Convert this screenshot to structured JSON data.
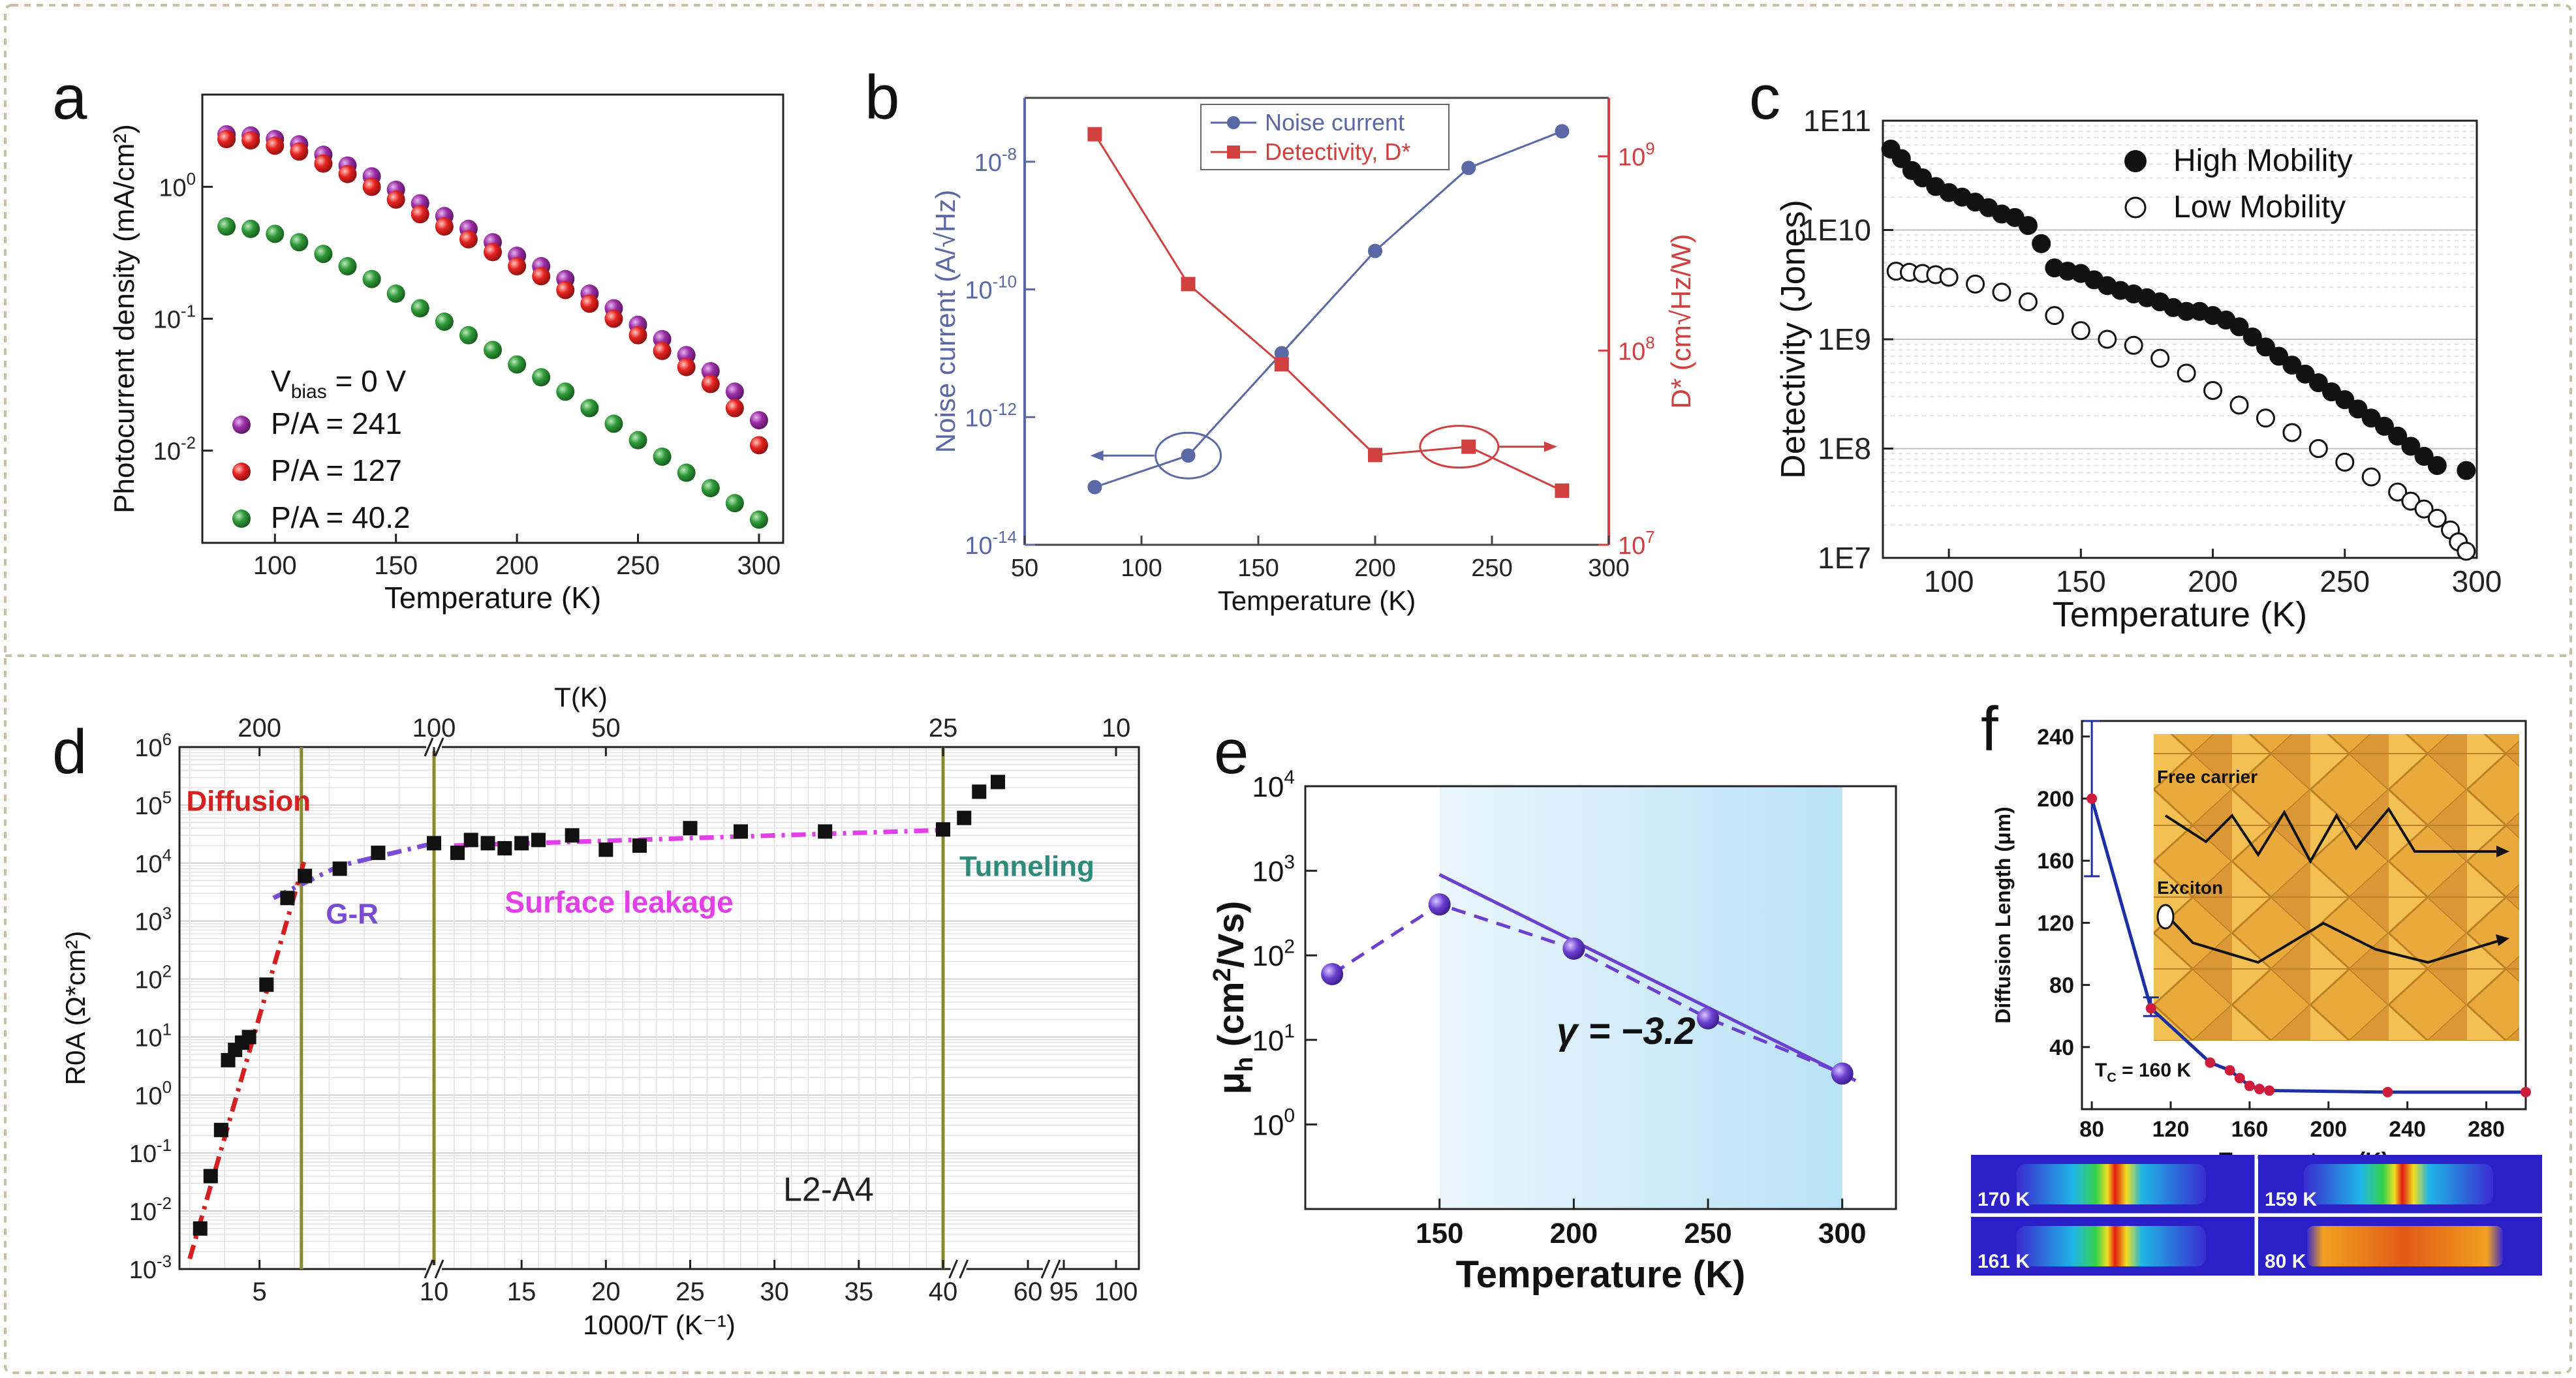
{
  "figure": {
    "panel_labels": [
      "a",
      "b",
      "c",
      "d",
      "e",
      "f"
    ],
    "frame_color": "#c8c0a4",
    "colors": {
      "purple": "#9b2fa6",
      "red": "#e52320",
      "green": "#2f9a39",
      "blue_axis": "#5a68a6",
      "red_axis": "#d0403f",
      "d_red": "#d42020",
      "d_violet": "#7a4cd6",
      "d_magenta": "#e040e6",
      "d_teal": "#2e8a7a",
      "e_violet": "#6b3fd0",
      "f_blue": "#1d2fa5",
      "f_red": "#d01c3c",
      "olive": "#8a8a2a"
    }
  },
  "chart_data": [
    {
      "id": "a",
      "type": "scatter",
      "yscale": "log",
      "xlabel": "Temperature (K)",
      "ylabel": "Photocurrent density (mA/cm²)",
      "xlim": [
        70,
        310
      ],
      "ylim": [
        0.002,
        5
      ],
      "xticks": [
        100,
        150,
        200,
        250,
        300
      ],
      "yticks": [
        {
          "v": 1,
          "base": "10",
          "exp": "0"
        },
        {
          "v": 0.1,
          "base": "10",
          "exp": "-1"
        },
        {
          "v": 0.01,
          "base": "10",
          "exp": "-2"
        }
      ],
      "annotation": {
        "main": "V",
        "sub": "bias",
        "rest": " = 0 V"
      },
      "series": [
        {
          "name": "P/A = 241",
          "color": "purple",
          "x": [
            80,
            90,
            100,
            110,
            120,
            130,
            140,
            150,
            160,
            170,
            180,
            190,
            200,
            210,
            220,
            230,
            240,
            250,
            260,
            270,
            280,
            290,
            300
          ],
          "y": [
            2.5,
            2.45,
            2.3,
            2.1,
            1.75,
            1.45,
            1.2,
            0.95,
            0.75,
            0.6,
            0.48,
            0.38,
            0.3,
            0.25,
            0.2,
            0.155,
            0.12,
            0.09,
            0.07,
            0.053,
            0.04,
            0.028,
            0.017
          ]
        },
        {
          "name": "P/A = 127",
          "color": "red",
          "x": [
            80,
            90,
            100,
            110,
            120,
            130,
            140,
            150,
            160,
            170,
            180,
            190,
            200,
            210,
            220,
            230,
            240,
            250,
            260,
            270,
            280,
            290,
            300
          ],
          "y": [
            2.3,
            2.25,
            2.05,
            1.85,
            1.5,
            1.25,
            1.0,
            0.8,
            0.62,
            0.5,
            0.4,
            0.32,
            0.25,
            0.21,
            0.165,
            0.13,
            0.1,
            0.075,
            0.057,
            0.043,
            0.032,
            0.021,
            0.011
          ]
        },
        {
          "name": "P/A = 40.2",
          "color": "green",
          "x": [
            80,
            90,
            100,
            110,
            120,
            130,
            140,
            150,
            160,
            170,
            180,
            190,
            200,
            210,
            220,
            230,
            240,
            250,
            260,
            270,
            280,
            290,
            300
          ],
          "y": [
            0.5,
            0.48,
            0.44,
            0.38,
            0.31,
            0.25,
            0.2,
            0.155,
            0.12,
            0.095,
            0.075,
            0.058,
            0.045,
            0.036,
            0.028,
            0.021,
            0.016,
            0.012,
            0.009,
            0.0068,
            0.0052,
            0.004,
            0.003
          ]
        }
      ]
    },
    {
      "id": "b",
      "type": "line",
      "yscale": "log",
      "xlabel": "Temperature (K)",
      "ylabel_left": "Noise current (A/√Hz)",
      "ylabel_right": "D* (cm√Hz/W)",
      "xlim": [
        50,
        300
      ],
      "xticks": [
        50,
        100,
        150,
        200,
        250,
        300
      ],
      "ylim_left": [
        1e-14,
        1e-07
      ],
      "yticks_left": [
        {
          "v": 1e-14,
          "base": "10",
          "exp": "-14"
        },
        {
          "v": 1e-12,
          "base": "10",
          "exp": "-12"
        },
        {
          "v": 1e-10,
          "base": "10",
          "exp": "-10"
        },
        {
          "v": 1e-08,
          "base": "10",
          "exp": "-8"
        }
      ],
      "ylim_right": [
        10000000.0,
        2000000000.0
      ],
      "yticks_right": [
        {
          "v": 10000000.0,
          "base": "10",
          "exp": "7"
        },
        {
          "v": 100000000.0,
          "base": "10",
          "exp": "8"
        },
        {
          "v": 1000000000.0,
          "base": "10",
          "exp": "9"
        }
      ],
      "series": [
        {
          "name": "Noise current",
          "axis": "left",
          "marker": "circle",
          "color": "blue_axis",
          "x": [
            80,
            120,
            160,
            200,
            240,
            280
          ],
          "y": [
            8e-14,
            2.5e-13,
            1e-11,
            4e-10,
            8e-09,
            3e-08
          ]
        },
        {
          "name": "Detectivity, D*",
          "axis": "right",
          "marker": "square",
          "color": "red_axis",
          "x": [
            80,
            120,
            160,
            200,
            240,
            280
          ],
          "y": [
            1300000000.0,
            220000000.0,
            85000000.0,
            29000000.0,
            32000000.0,
            19000000.0
          ]
        }
      ]
    },
    {
      "id": "c",
      "type": "scatter",
      "yscale": "log",
      "xlabel": "Temperature (K)",
      "ylabel": "Detectivity (Jones)",
      "xlim": [
        75,
        300
      ],
      "xticks": [
        100,
        150,
        200,
        250,
        300
      ],
      "ylim": [
        10000000.0,
        100000000000.0
      ],
      "yticks": [
        {
          "v": 100000000000.0,
          "label": "1E11"
        },
        {
          "v": 10000000000.0,
          "label": "1E10"
        },
        {
          "v": 1000000000.0,
          "label": "1E9"
        },
        {
          "v": 100000000.0,
          "label": "1E8"
        },
        {
          "v": 10000000.0,
          "label": "1E7"
        }
      ],
      "series": [
        {
          "name": "High Mobility",
          "fill": "filled",
          "x": [
            78,
            82,
            86,
            90,
            95,
            100,
            105,
            110,
            115,
            120,
            125,
            130,
            135,
            140,
            145,
            150,
            155,
            160,
            165,
            170,
            175,
            180,
            185,
            190,
            195,
            200,
            205,
            210,
            215,
            220,
            225,
            230,
            235,
            240,
            245,
            250,
            255,
            260,
            265,
            270,
            275,
            280,
            285,
            296
          ],
          "y": [
            55000000000.0,
            45000000000.0,
            35000000000.0,
            30000000000.0,
            25000000000.0,
            22000000000.0,
            20000000000.0,
            18000000000.0,
            16000000000.0,
            14000000000.0,
            13000000000.0,
            11000000000.0,
            7500000000.0,
            4500000000.0,
            4200000000.0,
            4000000000.0,
            3500000000.0,
            3100000000.0,
            2800000000.0,
            2600000000.0,
            2400000000.0,
            2200000000.0,
            1950000000.0,
            1800000000.0,
            1800000000.0,
            1650000000.0,
            1500000000.0,
            1300000000.0,
            1050000000.0,
            850000000.0,
            700000000.0,
            580000000.0,
            480000000.0,
            400000000.0,
            330000000.0,
            280000000.0,
            230000000.0,
            190000000.0,
            160000000.0,
            130000000.0,
            105000000.0,
            85000000.0,
            70000000.0,
            63000000.0
          ]
        },
        {
          "name": "Low Mobility",
          "fill": "open",
          "x": [
            80,
            85,
            90,
            95,
            100,
            110,
            120,
            130,
            140,
            150,
            160,
            170,
            180,
            190,
            200,
            210,
            220,
            230,
            240,
            250,
            260,
            270,
            275,
            280,
            285,
            290,
            293,
            296
          ],
          "y": [
            4200000000.0,
            4100000000.0,
            4000000000.0,
            3900000000.0,
            3700000000.0,
            3200000000.0,
            2700000000.0,
            2200000000.0,
            1650000000.0,
            1200000000.0,
            1000000000.0,
            880000000.0,
            670000000.0,
            490000000.0,
            340000000.0,
            250000000.0,
            190000000.0,
            140000000.0,
            100000000.0,
            75000000.0,
            55000000.0,
            40000000.0,
            33000000.0,
            28000000.0,
            23000000.0,
            18000000.0,
            14000000.0,
            11500000.0
          ]
        }
      ]
    },
    {
      "id": "d",
      "type": "scatter",
      "yscale": "log",
      "xlabel": "1000/T (K⁻¹)",
      "xlabel_top": "T(K)",
      "ylabel": "R0A (Ω*cm²)",
      "ylim": [
        0.001,
        1000000
      ],
      "xticks_bottom": [
        "5",
        "10",
        "15",
        "20",
        "25",
        "30",
        "35",
        "40",
        "60",
        "95",
        "100"
      ],
      "xticks_top": [
        "200",
        "100",
        "50",
        "25",
        "10"
      ],
      "yticks": [
        {
          "v": 1000000.0,
          "exp": "6"
        },
        {
          "v": 100000.0,
          "exp": "5"
        },
        {
          "v": 10000.0,
          "exp": "4"
        },
        {
          "v": 1000.0,
          "exp": "3"
        },
        {
          "v": 100.0,
          "exp": "2"
        },
        {
          "v": 10,
          "exp": "1"
        },
        {
          "v": 1,
          "exp": "0"
        },
        {
          "v": 0.1,
          "exp": "-1"
        },
        {
          "v": 0.01,
          "exp": "-2"
        },
        {
          "v": 0.001,
          "exp": "-3"
        }
      ],
      "regions": [
        "Diffusion",
        "G-R",
        "Surface leakage",
        "Tunneling"
      ],
      "sample_label": "L2-A4",
      "points_x_axis": [
        3.3,
        3.6,
        3.9,
        4.1,
        4.3,
        4.5,
        4.7,
        5.2,
        5.8,
        6.3,
        7.3,
        8.4,
        10,
        11.2,
        12,
        13,
        14,
        15,
        16,
        18,
        20,
        22,
        25,
        28,
        33,
        40,
        43,
        47,
        52
      ],
      "points_y": [
        0.005,
        0.04,
        0.25,
        4,
        6,
        8,
        10,
        80,
        2500,
        6000,
        8000,
        15000,
        22000,
        15000,
        25000,
        22000,
        18000,
        22000,
        25000,
        30000,
        17000,
        20000,
        40000,
        35000,
        35000,
        38000,
        60000,
        170000,
        250000
      ]
    },
    {
      "id": "e",
      "type": "scatter",
      "yscale": "log",
      "xlabel": "Temperature (K)",
      "xlim": [
        100,
        320
      ],
      "ylim": [
        0.1,
        10000
      ],
      "xticks": [
        150,
        200,
        250,
        300
      ],
      "yticks": [
        {
          "v": 10000,
          "exp": "4"
        },
        {
          "v": 1000,
          "exp": "3"
        },
        {
          "v": 100,
          "exp": "2"
        },
        {
          "v": 10,
          "exp": "1"
        },
        {
          "v": 1,
          "exp": "0"
        }
      ],
      "ylabel_parts": {
        "sym": "μ",
        "sub": "h",
        "open": " (cm",
        "sup": "2",
        "close": "/Vs)"
      },
      "fit_label": "γ = −3.2",
      "x": [
        110,
        150,
        200,
        250,
        300
      ],
      "y": [
        60,
        400,
        120,
        18,
        4
      ],
      "fit_x": [
        150,
        305
      ],
      "fit_y": [
        900,
        3.3
      ],
      "shaded_range": [
        150,
        300
      ]
    },
    {
      "id": "f",
      "type": "line",
      "xlabel": "Temperature (K)",
      "ylabel": "Diffusion Length (μm)",
      "xlim": [
        75,
        300
      ],
      "ylim": [
        0,
        250
      ],
      "xticks": [
        80,
        120,
        160,
        200,
        240,
        280
      ],
      "yticks": [
        40,
        80,
        120,
        160,
        200,
        240
      ],
      "tc_parts": {
        "t": "T",
        "sub": "C",
        "rest": " = 160 K"
      },
      "inset_labels": [
        "Free carrier",
        "Exciton"
      ],
      "x": [
        80,
        110,
        140,
        150,
        155,
        160,
        165,
        170,
        230,
        300
      ],
      "y": [
        200,
        65,
        30,
        25,
        20,
        15,
        13,
        12,
        11,
        11
      ],
      "errorbar_y": [
        [
          80,
          150,
          250
        ],
        [
          110,
          60,
          72
        ]
      ],
      "images": [
        "170 K",
        "159 K",
        "161 K",
        "80 K"
      ]
    }
  ]
}
